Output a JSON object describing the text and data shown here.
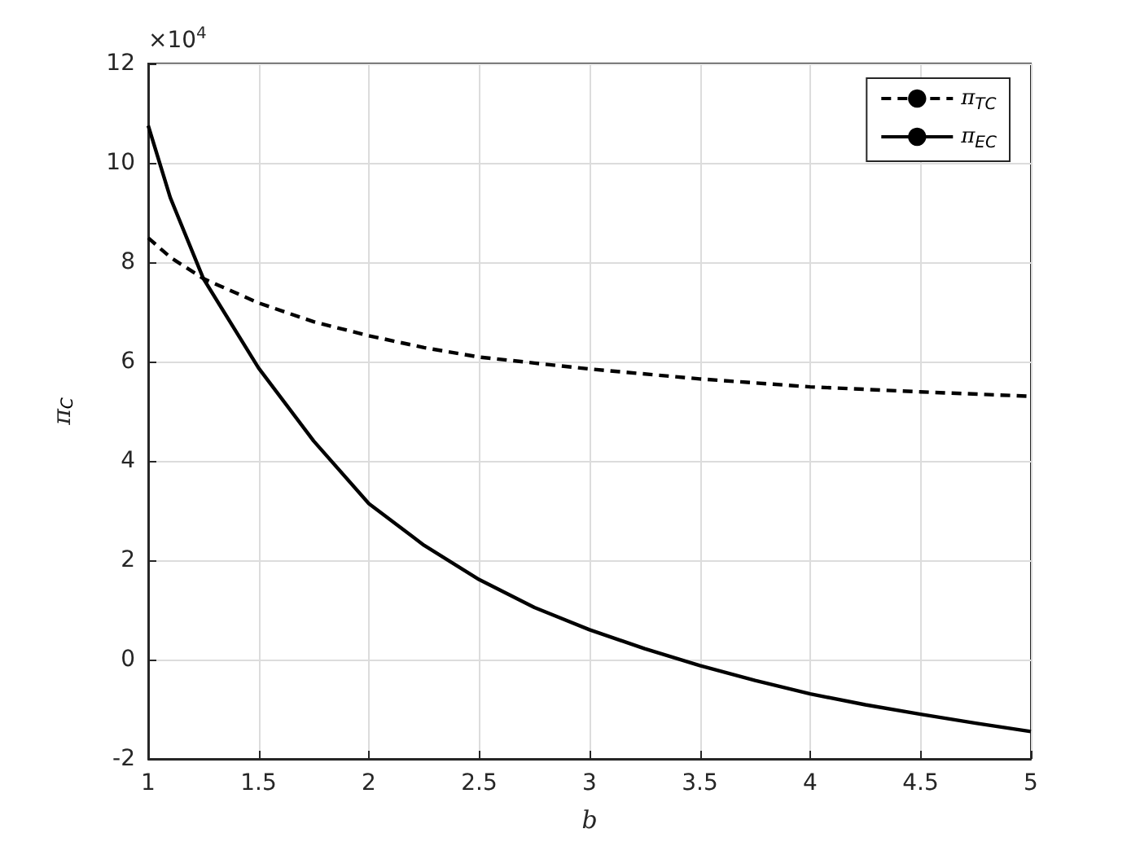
{
  "chart_data": {
    "type": "line",
    "xlabel": "b",
    "ylabel": "π$_{C}$",
    "annotations": [
      "×10$^{4}$"
    ],
    "xlim": [
      1,
      5
    ],
    "xticks": [
      1,
      1.5,
      2,
      2.5,
      3,
      3.5,
      4,
      4.5,
      5
    ],
    "ylim": [
      -2,
      12
    ],
    "yticks": [
      -2,
      0,
      2,
      4,
      6,
      8,
      10,
      12
    ],
    "grid": true,
    "legend": "top right",
    "marker": "none",
    "series": [
      {
        "name": "π$_{TC}$",
        "color": "#000000",
        "line_style": "dashed",
        "x": [
          1,
          1.1,
          1.25,
          1.5,
          1.75,
          2,
          2.25,
          2.5,
          2.75,
          3,
          3.5,
          4,
          4.5,
          5
        ],
        "values": [
          8.49,
          8.1,
          7.67,
          7.18,
          6.8,
          6.52,
          6.28,
          6.09,
          5.97,
          5.85,
          5.65,
          5.49,
          5.39,
          5.3
        ]
      },
      {
        "name": "π$_{EC}$",
        "color": "#000000",
        "line_style": "solid",
        "x": [
          1,
          1.1,
          1.25,
          1.5,
          1.75,
          2,
          2.25,
          2.5,
          2.75,
          3,
          3.25,
          3.5,
          3.75,
          4,
          4.25,
          4.5,
          4.75,
          5
        ],
        "values": [
          10.75,
          9.3,
          7.67,
          5.87,
          4.4,
          3.14,
          2.3,
          1.61,
          1.05,
          0.6,
          0.22,
          -0.12,
          -0.42,
          -0.69,
          -0.91,
          -1.1,
          -1.28,
          -1.45
        ]
      }
    ]
  }
}
